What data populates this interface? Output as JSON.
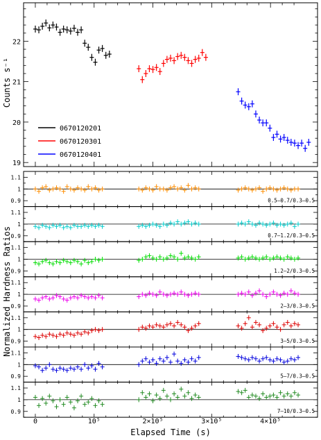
{
  "chart_data": [
    {
      "type": "scatter",
      "panel": "top",
      "ylabel": "Counts s⁻¹",
      "xlim": [
        -20000,
        480000
      ],
      "ylim": [
        18.9,
        22.95
      ],
      "yticks": [
        "19",
        "20",
        "21",
        "22"
      ],
      "legend": {
        "placement": "left",
        "entries": [
          "0670120201",
          "0670120301",
          "0670120401"
        ]
      },
      "series": [
        {
          "name": "0670120201",
          "color": "#000000",
          "x": [
            0,
            6000,
            12000,
            18000,
            24000,
            30000,
            36000,
            42000,
            48000,
            54000,
            60000,
            66000,
            72000,
            78000,
            84000,
            90000,
            96000,
            102000,
            108000,
            114000,
            120000,
            126000
          ],
          "y": [
            22.3,
            22.28,
            22.37,
            22.45,
            22.33,
            22.4,
            22.35,
            22.22,
            22.3,
            22.28,
            22.25,
            22.32,
            22.22,
            22.28,
            21.95,
            21.85,
            21.6,
            21.48,
            21.78,
            21.82,
            21.65,
            21.68
          ]
        },
        {
          "name": "0670120301",
          "color": "#ff0000",
          "x": [
            176000,
            182000,
            188000,
            194000,
            200000,
            206000,
            212000,
            218000,
            224000,
            230000,
            236000,
            242000,
            248000,
            254000,
            260000,
            266000,
            272000,
            278000,
            284000,
            290000
          ],
          "y": [
            21.32,
            21.05,
            21.2,
            21.32,
            21.3,
            21.35,
            21.25,
            21.45,
            21.55,
            21.58,
            21.52,
            21.62,
            21.65,
            21.6,
            21.52,
            21.45,
            21.55,
            21.58,
            21.72,
            21.6
          ]
        },
        {
          "name": "0670120401",
          "color": "#0000ff",
          "x": [
            345000,
            351000,
            357000,
            363000,
            369000,
            375000,
            381000,
            387000,
            393000,
            399000,
            405000,
            411000,
            417000,
            423000,
            429000,
            435000,
            441000,
            447000,
            453000,
            459000,
            465000
          ],
          "y": [
            20.75,
            20.52,
            20.42,
            20.38,
            20.45,
            20.2,
            20.05,
            19.98,
            19.98,
            19.85,
            19.62,
            19.7,
            19.58,
            19.62,
            19.55,
            19.5,
            19.48,
            19.42,
            19.48,
            19.35,
            19.5
          ]
        }
      ]
    },
    {
      "type": "scatter",
      "panel": "ratio",
      "label": "0.5–0.7/0.3–0.5",
      "color": "#ff8c00",
      "ylim": [
        0.85,
        1.15
      ],
      "yticks": [
        "0.9",
        "1",
        "1.1"
      ],
      "values": [
        [
          1.0,
          0.98,
          1.01,
          1.02,
          0.99,
          1.0,
          1.01,
          1.0,
          0.98,
          1.02,
          1.0,
          0.99,
          1.01,
          1.0,
          0.99,
          1.02,
          1.0,
          1.01,
          0.99,
          1.0
        ],
        [
          1.0,
          0.99,
          1.01,
          1.0,
          0.99,
          1.02,
          1.0,
          1.0,
          0.99,
          1.01,
          1.02,
          1.0,
          1.01,
          0.99,
          1.03,
          1.0,
          1.01,
          1.0
        ],
        [
          0.99,
          1.0,
          1.01,
          1.0,
          0.99,
          1.0,
          1.01,
          0.98,
          1.0,
          1.01,
          1.0,
          0.99,
          1.0,
          1.01,
          1.0,
          0.99,
          1.0,
          1.0
        ]
      ]
    },
    {
      "type": "scatter",
      "panel": "ratio",
      "label": "0.7–1.2/0.3–0.5",
      "color": "#00cccc",
      "ylim": [
        0.85,
        1.15
      ],
      "yticks": [
        "0.9",
        "1",
        "1.1"
      ],
      "values": [
        [
          0.98,
          0.97,
          0.99,
          0.98,
          0.97,
          0.99,
          0.98,
          0.99,
          0.97,
          0.98,
          0.97,
          0.99,
          0.98,
          0.98,
          0.99,
          0.98,
          0.99,
          0.98,
          0.99,
          0.98
        ],
        [
          0.98,
          0.99,
          0.98,
          0.99,
          1.0,
          0.99,
          0.98,
          1.0,
          0.99,
          1.01,
          1.0,
          1.02,
          1.0,
          1.01,
          1.02,
          1.0,
          1.01,
          1.0
        ],
        [
          1.0,
          1.01,
          1.0,
          1.02,
          1.0,
          0.99,
          1.01,
          1.0,
          0.99,
          1.0,
          1.01,
          0.99,
          1.0,
          0.99,
          1.0,
          1.01,
          0.98,
          1.0
        ]
      ]
    },
    {
      "type": "scatter",
      "panel": "ratio",
      "label": "1.2–2/0.3–0.5",
      "color": "#00dd00",
      "ylim": [
        0.85,
        1.15
      ],
      "yticks": [
        "0.9",
        "1",
        "1.1"
      ],
      "values": [
        [
          0.97,
          0.96,
          0.98,
          0.99,
          0.97,
          0.96,
          0.98,
          0.97,
          0.99,
          0.98,
          0.97,
          0.99,
          0.98,
          0.96,
          0.99,
          0.97,
          0.98,
          1.0,
          0.99,
          1.0
        ],
        [
          0.99,
          1.0,
          1.02,
          1.03,
          1.01,
          1.0,
          1.02,
          1.0,
          1.01,
          1.03,
          1.02,
          1.0,
          1.05,
          1.01,
          1.02,
          1.01,
          1.0,
          1.02
        ],
        [
          1.01,
          1.02,
          1.0,
          1.01,
          1.02,
          1.01,
          1.0,
          1.01,
          1.02,
          1.0,
          1.01,
          1.02,
          1.01,
          1.0,
          1.02,
          1.01,
          1.0,
          1.01
        ]
      ]
    },
    {
      "type": "scatter",
      "panel": "ratio",
      "label": "2–3/0.3–0.5",
      "color": "#ee00ee",
      "ylim": [
        0.85,
        1.15
      ],
      "yticks": [
        "0.9",
        "1",
        "1.1"
      ],
      "values": [
        [
          0.96,
          0.95,
          0.97,
          0.98,
          0.96,
          0.97,
          0.99,
          0.98,
          0.96,
          0.95,
          0.97,
          0.98,
          0.97,
          0.99,
          0.98,
          0.97,
          0.98,
          0.97,
          0.99,
          0.97
        ],
        [
          0.98,
          1.0,
          0.99,
          1.01,
          1.0,
          0.99,
          1.02,
          1.0,
          0.99,
          1.0,
          1.01,
          1.0,
          1.02,
          1.0,
          0.99,
          1.0,
          1.01,
          1.0
        ],
        [
          1.0,
          1.01,
          1.0,
          1.02,
          0.99,
          1.01,
          1.03,
          1.0,
          0.98,
          1.0,
          1.02,
          1.0,
          0.99,
          1.01,
          1.0,
          1.03,
          1.01,
          1.0
        ]
      ]
    },
    {
      "type": "scatter",
      "panel": "ratio",
      "label": "3–5/0.3–0.5",
      "color": "#dd0000",
      "ylim": [
        0.85,
        1.15
      ],
      "yticks": [
        "0.9",
        "1",
        "1.1"
      ],
      "values": [
        [
          0.94,
          0.93,
          0.95,
          0.94,
          0.96,
          0.95,
          0.94,
          0.96,
          0.95,
          0.97,
          0.96,
          0.95,
          0.97,
          0.96,
          0.98,
          0.97,
          0.99,
          1.0,
          0.99,
          1.0
        ],
        [
          1.0,
          1.02,
          1.01,
          1.03,
          1.02,
          1.04,
          1.03,
          1.02,
          1.04,
          1.05,
          1.03,
          1.06,
          1.04,
          1.02,
          0.99,
          1.01,
          1.03,
          1.05
        ],
        [
          1.03,
          1.01,
          1.05,
          1.1,
          1.02,
          1.06,
          1.04,
          0.99,
          1.01,
          1.03,
          1.05,
          1.02,
          1.0,
          1.04,
          1.06,
          1.03,
          1.05,
          1.04
        ]
      ]
    },
    {
      "type": "scatter",
      "panel": "ratio",
      "label": "5–7/0.3–0.5",
      "color": "#0000dd",
      "ylim": [
        0.85,
        1.15
      ],
      "yticks": [
        "0.9",
        "1",
        "1.1"
      ],
      "values": [
        [
          0.99,
          0.98,
          0.95,
          0.97,
          1.0,
          0.96,
          0.95,
          0.97,
          0.96,
          0.95,
          0.97,
          0.96,
          0.98,
          0.96,
          1.0,
          0.97,
          0.99,
          0.96,
          1.01,
          0.98
        ],
        [
          1.0,
          1.03,
          1.05,
          1.02,
          1.04,
          1.01,
          1.05,
          1.03,
          1.06,
          1.02,
          1.09,
          1.03,
          1.01,
          1.04,
          1.02,
          1.05,
          1.03,
          1.06
        ],
        [
          1.07,
          1.06,
          1.05,
          1.04,
          1.06,
          1.05,
          1.03,
          1.05,
          1.06,
          1.04,
          1.03,
          1.05,
          1.04,
          1.02,
          1.03,
          1.05,
          1.04,
          1.06
        ]
      ]
    },
    {
      "type": "scatter",
      "panel": "ratio",
      "label": "7–10/0.3–0.5",
      "color": "#228b22",
      "ylim": [
        0.85,
        1.15
      ],
      "yticks": [
        "0.9",
        "1",
        "1.1"
      ],
      "values": [
        [
          1.02,
          0.95,
          1.01,
          0.97,
          1.03,
          0.99,
          0.94,
          1.0,
          0.96,
          1.02,
          0.98,
          0.93,
          0.99,
          1.03,
          0.96,
          0.98,
          1.01,
          0.95,
          0.99,
          0.96
        ],
        [
          1.0,
          1.06,
          1.02,
          1.05,
          0.99,
          1.04,
          1.01,
          1.08,
          1.03,
          1.0,
          1.05,
          1.02,
          1.09,
          1.03,
          1.06,
          1.01,
          1.04,
          1.02
        ],
        [
          1.07,
          1.06,
          1.08,
          1.02,
          1.04,
          1.03,
          1.01,
          1.05,
          1.02,
          1.03,
          1.04,
          1.02,
          1.06,
          1.03,
          1.05,
          1.03,
          1.06,
          1.04
        ]
      ]
    }
  ],
  "axes": {
    "ylabel_ratio": "Normalized Hardness Ratios",
    "xlabel": "Elapsed Time (s)",
    "xticks": [
      "0",
      "10⁵",
      "2×10⁵",
      "3×10⁵",
      "4×10⁵"
    ]
  }
}
